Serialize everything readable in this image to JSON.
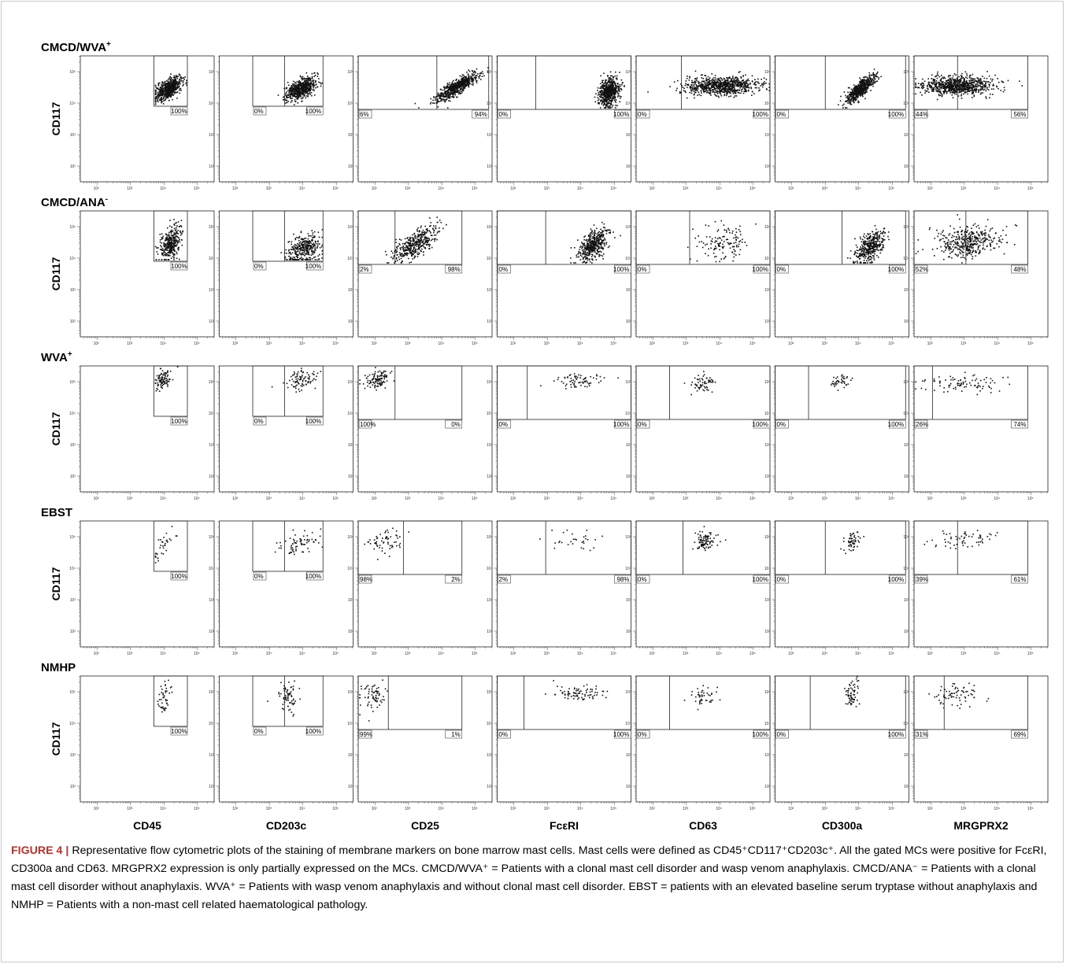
{
  "figure": {
    "label": "FIGURE 4",
    "separator": "|",
    "text": "Representative flow cytometric plots of the staining of membrane markers on bone marrow mast cells. Mast cells were defined as CD45⁺CD117⁺CD203c⁺. All the gated MCs were positive for FcεRI, CD300a and CD63. MRGPRX2 expression is only partially expressed on the MCs. CMCD/WVA⁺ = Patients with a clonal mast cell disorder and wasp venom anaphylaxis. CMCD/ANA⁻ = Patients with a clonal mast cell disorder without anaphylaxis. WVA⁺ = Patients with wasp venom anaphylaxis and without clonal mast cell disorder. EBST = patients with an elevated baseline serum tryptase without anaphylaxis and NMHP = Patients with a non-mast cell related haematological pathology."
  },
  "colors": {
    "points": "#111111",
    "caption_label": "#c0302a",
    "frame": "#c9c9c9"
  },
  "chart_data": {
    "type": "scatter",
    "ylabel": "CD117",
    "columns": [
      "CD45",
      "CD203c",
      "CD25",
      "FcεRI",
      "CD63",
      "CD300a",
      "MRGPRX2"
    ],
    "x_ticks": [
      "10²",
      "10³",
      "10⁴",
      "10⁵"
    ],
    "y_ticks": [
      "10⁵",
      "10⁴",
      "10³",
      "10²"
    ],
    "log_range": [
      1.5,
      5.5
    ],
    "rows": [
      {
        "group": "CMCD/WVA",
        "sup": "+",
        "panels": [
          {
            "gate": [
              3.7,
              4.7,
              3.9,
              5.5
            ],
            "divider": null,
            "labels": [
              "100%"
            ],
            "cloud": {
              "x": 4.15,
              "y": 4.45,
              "sx": 0.2,
              "sy": 0.18,
              "rho": 0.6,
              "n": 600
            }
          },
          {
            "gate": [
              2.5,
              4.6,
              3.9,
              5.5
            ],
            "divider": 3.45,
            "labels": [
              "0%",
              "100%"
            ],
            "cloud": {
              "x": 3.95,
              "y": 4.45,
              "sx": 0.22,
              "sy": 0.18,
              "rho": 0.5,
              "n": 600
            }
          },
          {
            "gate": [
              1.5,
              5.4,
              3.8,
              5.5
            ],
            "divider": 3.85,
            "labels": [
              "6%",
              "94%"
            ],
            "cloud": {
              "x": 4.45,
              "y": 4.5,
              "sx": 0.3,
              "sy": 0.22,
              "rho": 0.8,
              "n": 600
            }
          },
          {
            "gate": [
              1.5,
              5.5,
              3.8,
              5.5
            ],
            "divider": 2.65,
            "labels": [
              "0%",
              "100%"
            ],
            "cloud": {
              "x": 4.85,
              "y": 4.35,
              "sx": 0.15,
              "sy": 0.22,
              "rho": 0.3,
              "n": 600
            }
          },
          {
            "gate": [
              1.5,
              5.5,
              3.8,
              5.5
            ],
            "divider": 2.85,
            "labels": [
              "0%",
              "100%"
            ],
            "cloud": {
              "x": 4.05,
              "y": 4.55,
              "sx": 0.55,
              "sy": 0.15,
              "rho": 0.1,
              "n": 800
            }
          },
          {
            "gate": [
              1.5,
              5.4,
              3.8,
              5.5
            ],
            "divider": 3.0,
            "labels": [
              "0%",
              "100%"
            ],
            "cloud": {
              "x": 4.05,
              "y": 4.45,
              "sx": 0.22,
              "sy": 0.22,
              "rho": 0.8,
              "n": 600
            }
          },
          {
            "gate": [
              1.5,
              4.9,
              3.8,
              5.5
            ],
            "divider": 2.8,
            "labels": [
              "44%",
              "56%"
            ],
            "cloud": {
              "x": 2.8,
              "y": 4.55,
              "sx": 0.55,
              "sy": 0.15,
              "rho": 0.0,
              "n": 800
            }
          }
        ]
      },
      {
        "group": "CMCD/ANA",
        "sup": "-",
        "panels": [
          {
            "gate": [
              3.7,
              4.7,
              3.9,
              5.5
            ],
            "divider": null,
            "labels": [
              "100%"
            ],
            "cloud": {
              "x": 4.2,
              "y": 4.45,
              "sx": 0.15,
              "sy": 0.28,
              "rho": 0.4,
              "n": 350
            }
          },
          {
            "gate": [
              2.5,
              4.6,
              3.9,
              5.5
            ],
            "divider": 3.45,
            "labels": [
              "0%",
              "100%"
            ],
            "cloud": {
              "x": 4.05,
              "y": 4.3,
              "sx": 0.25,
              "sy": 0.25,
              "rho": 0.3,
              "n": 350
            }
          },
          {
            "gate": [
              1.5,
              4.6,
              3.8,
              5.5
            ],
            "divider": 2.6,
            "labels": [
              "2%",
              "98%"
            ],
            "cloud": {
              "x": 3.2,
              "y": 4.45,
              "sx": 0.35,
              "sy": 0.3,
              "rho": 0.7,
              "n": 400
            }
          },
          {
            "gate": [
              1.5,
              5.5,
              3.8,
              5.5
            ],
            "divider": 2.95,
            "labels": [
              "0%",
              "100%"
            ],
            "cloud": {
              "x": 4.35,
              "y": 4.4,
              "sx": 0.22,
              "sy": 0.25,
              "rho": 0.5,
              "n": 450
            }
          },
          {
            "gate": [
              1.5,
              5.5,
              3.8,
              5.5
            ],
            "divider": 3.1,
            "labels": [
              "0%",
              "100%"
            ],
            "cloud": {
              "x": 4.1,
              "y": 4.5,
              "sx": 0.4,
              "sy": 0.3,
              "rho": 0.1,
              "n": 130
            }
          },
          {
            "gate": [
              1.5,
              5.4,
              3.8,
              5.5
            ],
            "divider": 3.5,
            "labels": [
              "0%",
              "100%"
            ],
            "cloud": {
              "x": 4.35,
              "y": 4.35,
              "sx": 0.22,
              "sy": 0.25,
              "rho": 0.5,
              "n": 400
            }
          },
          {
            "gate": [
              1.5,
              4.9,
              3.8,
              5.5
            ],
            "divider": 3.05,
            "labels": [
              "52%",
              "48%"
            ],
            "cloud": {
              "x": 3.1,
              "y": 4.5,
              "sx": 0.45,
              "sy": 0.25,
              "rho": 0.1,
              "n": 400
            }
          }
        ]
      },
      {
        "group": "WVA",
        "sup": "+",
        "panels": [
          {
            "gate": [
              3.7,
              4.7,
              3.9,
              5.5
            ],
            "divider": null,
            "labels": [
              "100%"
            ],
            "cloud": {
              "x": 3.95,
              "y": 5.05,
              "sx": 0.12,
              "sy": 0.15,
              "rho": 0.3,
              "n": 90
            }
          },
          {
            "gate": [
              2.5,
              4.6,
              3.9,
              5.5
            ],
            "divider": 3.45,
            "labels": [
              "0%",
              "100%"
            ],
            "cloud": {
              "x": 3.95,
              "y": 5.05,
              "sx": 0.25,
              "sy": 0.15,
              "rho": 0.2,
              "n": 90
            }
          },
          {
            "gate": [
              1.5,
              4.6,
              3.8,
              5.5
            ],
            "divider": 2.6,
            "labels": [
              "100%",
              "0%"
            ],
            "cloud": {
              "x": 2.05,
              "y": 5.05,
              "sx": 0.18,
              "sy": 0.15,
              "rho": 0.2,
              "n": 110
            }
          },
          {
            "gate": [
              1.5,
              5.5,
              3.8,
              5.5
            ],
            "divider": 2.4,
            "labels": [
              "0%",
              "100%"
            ],
            "cloud": {
              "x": 3.9,
              "y": 5.0,
              "sx": 0.35,
              "sy": 0.12,
              "rho": 0.2,
              "n": 70
            }
          },
          {
            "gate": [
              1.5,
              5.5,
              3.8,
              5.5
            ],
            "divider": 2.5,
            "labels": [
              "0%",
              "100%"
            ],
            "cloud": {
              "x": 3.5,
              "y": 5.0,
              "sx": 0.2,
              "sy": 0.15,
              "rho": 0.2,
              "n": 60
            }
          },
          {
            "gate": [
              1.5,
              5.4,
              3.8,
              5.5
            ],
            "divider": 2.5,
            "labels": [
              "0%",
              "100%"
            ],
            "cloud": {
              "x": 3.45,
              "y": 5.0,
              "sx": 0.15,
              "sy": 0.12,
              "rho": 0.2,
              "n": 40
            }
          },
          {
            "gate": [
              1.5,
              4.9,
              3.8,
              5.5
            ],
            "divider": 2.05,
            "labels": [
              "26%",
              "74%"
            ],
            "cloud": {
              "x": 2.9,
              "y": 4.95,
              "sx": 0.6,
              "sy": 0.15,
              "rho": 0.0,
              "n": 90
            }
          }
        ]
      },
      {
        "group": "EBST",
        "sup": "",
        "panels": [
          {
            "gate": [
              3.7,
              4.7,
              3.9,
              5.5
            ],
            "divider": null,
            "labels": [
              "100%"
            ],
            "cloud": {
              "x": 4.0,
              "y": 4.75,
              "sx": 0.18,
              "sy": 0.28,
              "rho": 0.8,
              "n": 35
            }
          },
          {
            "gate": [
              2.5,
              4.6,
              3.9,
              5.5
            ],
            "divider": 3.45,
            "labels": [
              "0%",
              "100%"
            ],
            "cloud": {
              "x": 3.9,
              "y": 4.8,
              "sx": 0.3,
              "sy": 0.2,
              "rho": 0.5,
              "n": 70
            }
          },
          {
            "gate": [
              1.5,
              4.6,
              3.8,
              5.5
            ],
            "divider": 2.85,
            "labels": [
              "98%",
              "2%"
            ],
            "cloud": {
              "x": 2.3,
              "y": 4.85,
              "sx": 0.28,
              "sy": 0.2,
              "rho": 0.1,
              "n": 60
            }
          },
          {
            "gate": [
              1.5,
              5.5,
              3.8,
              5.5
            ],
            "divider": 2.95,
            "labels": [
              "2%",
              "98%"
            ],
            "cloud": {
              "x": 3.9,
              "y": 4.85,
              "sx": 0.45,
              "sy": 0.15,
              "rho": 0.0,
              "n": 30
            }
          },
          {
            "gate": [
              1.5,
              5.5,
              3.8,
              5.5
            ],
            "divider": 2.9,
            "labels": [
              "0%",
              "100%"
            ],
            "cloud": {
              "x": 3.55,
              "y": 4.85,
              "sx": 0.2,
              "sy": 0.15,
              "rho": 0.3,
              "n": 90
            }
          },
          {
            "gate": [
              1.5,
              5.4,
              3.8,
              5.5
            ],
            "divider": 3.0,
            "labels": [
              "0%",
              "100%"
            ],
            "cloud": {
              "x": 3.8,
              "y": 4.85,
              "sx": 0.13,
              "sy": 0.18,
              "rho": 0.4,
              "n": 55
            }
          },
          {
            "gate": [
              1.5,
              4.9,
              3.8,
              5.5
            ],
            "divider": 2.8,
            "labels": [
              "39%",
              "61%"
            ],
            "cloud": {
              "x": 2.9,
              "y": 4.9,
              "sx": 0.45,
              "sy": 0.15,
              "rho": 0.2,
              "n": 60
            }
          }
        ]
      },
      {
        "group": "NMHP",
        "sup": "",
        "panels": [
          {
            "gate": [
              3.7,
              4.7,
              3.9,
              5.5
            ],
            "divider": null,
            "labels": [
              "100%"
            ],
            "cloud": {
              "x": 4.0,
              "y": 4.8,
              "sx": 0.12,
              "sy": 0.25,
              "rho": 0.3,
              "n": 45
            }
          },
          {
            "gate": [
              2.5,
              4.6,
              3.9,
              5.5
            ],
            "divider": 3.45,
            "labels": [
              "0%",
              "100%"
            ],
            "cloud": {
              "x": 3.55,
              "y": 4.85,
              "sx": 0.2,
              "sy": 0.25,
              "rho": 0.1,
              "n": 70
            }
          },
          {
            "gate": [
              1.5,
              4.6,
              3.8,
              5.5
            ],
            "divider": 2.4,
            "labels": [
              "99%",
              "1%"
            ],
            "cloud": {
              "x": 1.95,
              "y": 4.85,
              "sx": 0.18,
              "sy": 0.22,
              "rho": 0.1,
              "n": 70
            }
          },
          {
            "gate": [
              1.5,
              5.5,
              3.8,
              5.5
            ],
            "divider": 2.3,
            "labels": [
              "0%",
              "100%"
            ],
            "cloud": {
              "x": 3.95,
              "y": 4.95,
              "sx": 0.4,
              "sy": 0.12,
              "rho": 0.0,
              "n": 80
            }
          },
          {
            "gate": [
              1.5,
              5.5,
              3.8,
              5.5
            ],
            "divider": 2.5,
            "labels": [
              "0%",
              "100%"
            ],
            "cloud": {
              "x": 3.5,
              "y": 4.85,
              "sx": 0.2,
              "sy": 0.18,
              "rho": 0.2,
              "n": 45
            }
          },
          {
            "gate": [
              1.5,
              5.4,
              3.8,
              5.5
            ],
            "divider": 2.55,
            "labels": [
              "0%",
              "100%"
            ],
            "cloud": {
              "x": 3.8,
              "y": 4.9,
              "sx": 0.1,
              "sy": 0.22,
              "rho": 0.3,
              "n": 65
            }
          },
          {
            "gate": [
              1.5,
              4.9,
              3.8,
              5.5
            ],
            "divider": 2.4,
            "labels": [
              "31%",
              "69%"
            ],
            "cloud": {
              "x": 2.75,
              "y": 4.85,
              "sx": 0.35,
              "sy": 0.18,
              "rho": 0.0,
              "n": 70
            }
          }
        ]
      }
    ]
  }
}
